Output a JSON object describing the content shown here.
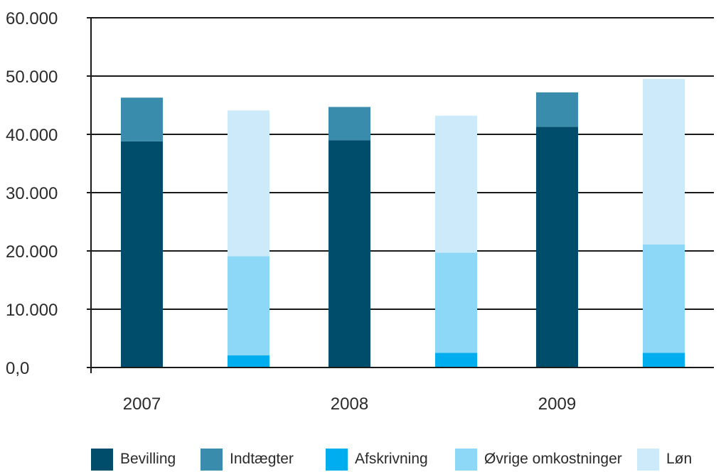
{
  "chart_data": {
    "type": "bar",
    "stacked": true,
    "title": "",
    "xlabel": "",
    "ylabel": "",
    "ylim": [
      0,
      60000
    ],
    "y_ticks": [
      "0,0",
      "10.000",
      "20.000",
      "30.000",
      "40.000",
      "50.000",
      "60.000"
    ],
    "y_tick_values": [
      0,
      10000,
      20000,
      30000,
      40000,
      50000,
      60000
    ],
    "grid": true,
    "legend_position": "bottom",
    "categories": [
      "2007",
      "2008",
      "2009"
    ],
    "series": [
      {
        "name": "Bevilling",
        "color": "#004d6b",
        "group": "income",
        "values": [
          38800,
          39000,
          41300
        ]
      },
      {
        "name": "Indtægter",
        "color": "#3a8cad",
        "group": "income",
        "values": [
          7500,
          5700,
          5900
        ]
      },
      {
        "name": "Afskrivning",
        "color": "#00aeef",
        "group": "expenses",
        "values": [
          2100,
          2500,
          2500
        ]
      },
      {
        "name": "Øvrige omkostninger",
        "color": "#8dd8f7",
        "group": "expenses",
        "values": [
          17000,
          17200,
          18600
        ]
      },
      {
        "name": "Løn",
        "color": "#cceaf9",
        "group": "expenses",
        "values": [
          25000,
          23500,
          28400
        ]
      }
    ]
  }
}
